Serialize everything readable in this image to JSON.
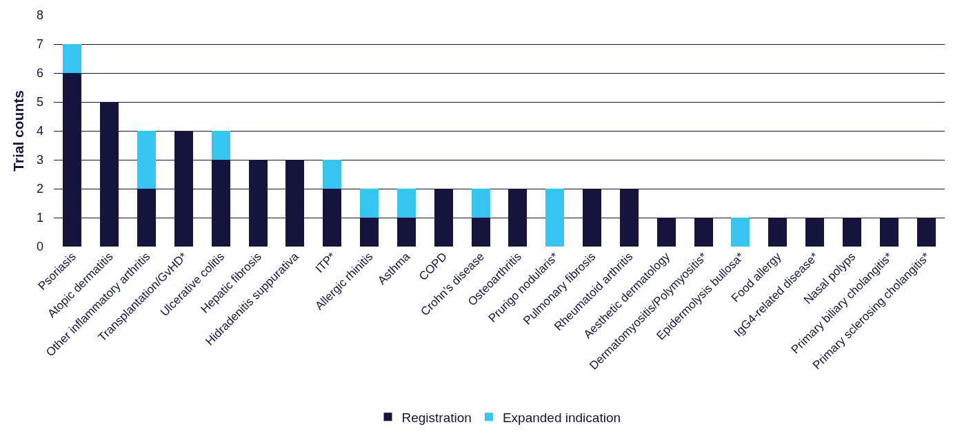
{
  "chart_data": {
    "type": "bar",
    "stacked": true,
    "ylabel": "Trial counts",
    "categories": [
      "Psoriasis",
      "Atopic dermatitis",
      "Other inflammatory arthritis",
      "Transplantation/GvHD*",
      "Ulcerative colitis",
      "Hepatic fibrosis",
      "Hidradenitis suppurativa",
      "ITP*",
      "Allergic rhinitis",
      "Asthma",
      "COPD",
      "Crohn’s disease",
      "Osteoarthritis",
      "Prurigo nodularis*",
      "Pulmonary fibrosis",
      "Rheumatoid arthritis",
      "Aesthetic dermatology",
      "Dermatomyositis/Polymyositis*",
      "Epidermolysis bullosa*",
      "Food allergy",
      "IgG4-related disease*",
      "Nasal polyps",
      "Primary biliary cholangitis*",
      "Primary sclerosing cholangitis*"
    ],
    "series": [
      {
        "name": "Registration",
        "color": "#14143c",
        "values": [
          6,
          5,
          2,
          4,
          3,
          3,
          3,
          2,
          1,
          1,
          2,
          1,
          2,
          0,
          2,
          2,
          1,
          1,
          0,
          1,
          1,
          1,
          1,
          1
        ]
      },
      {
        "name": "Expanded indication",
        "color": "#36c5f0",
        "values": [
          1,
          0,
          2,
          0,
          1,
          0,
          0,
          1,
          1,
          1,
          0,
          1,
          0,
          2,
          0,
          0,
          0,
          0,
          1,
          0,
          0,
          0,
          0,
          0
        ]
      }
    ],
    "ylim": [
      0,
      8
    ],
    "yticks": [
      0,
      1,
      2,
      3,
      4,
      5,
      6,
      7,
      8
    ],
    "grid": "y",
    "legend": "bottom"
  }
}
